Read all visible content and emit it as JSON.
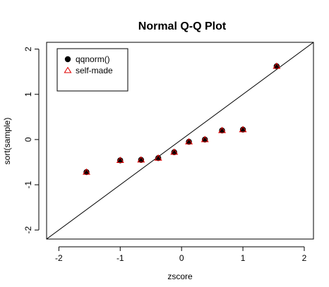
{
  "chart_data": {
    "type": "scatter",
    "title": "Normal Q-Q Plot",
    "xlabel": "zscore",
    "ylabel": "sort(sample)",
    "xlim": [
      -2.2,
      2.15
    ],
    "ylim": [
      -2.2,
      2.15
    ],
    "x_ticks": [
      -2,
      -1,
      0,
      1,
      2
    ],
    "y_ticks": [
      -2,
      -1,
      0,
      1,
      2
    ],
    "x_tick_labels": [
      "-2",
      "-1",
      "0",
      "1",
      "2"
    ],
    "y_tick_labels": [
      "-2",
      "-1",
      "0",
      "1",
      "2"
    ],
    "grid": false,
    "legend_position": "top-left",
    "reference_line": {
      "slope": 1,
      "intercept": 0,
      "color": "#000000"
    },
    "series": [
      {
        "name": "qqnorm()",
        "marker": "filled-circle",
        "color": "#000000",
        "x": [
          -1.55,
          -1.0,
          -0.66,
          -0.38,
          -0.12,
          0.12,
          0.38,
          0.66,
          1.0,
          1.55
        ],
        "y": [
          -0.72,
          -0.46,
          -0.45,
          -0.41,
          -0.28,
          -0.05,
          0.0,
          0.2,
          0.22,
          1.62
        ]
      },
      {
        "name": "self-made",
        "marker": "open-triangle",
        "color": "#e00000",
        "x": [
          -1.55,
          -1.0,
          -0.66,
          -0.38,
          -0.12,
          0.12,
          0.38,
          0.66,
          1.0,
          1.55
        ],
        "y": [
          -0.72,
          -0.46,
          -0.45,
          -0.41,
          -0.28,
          -0.05,
          0.0,
          0.2,
          0.22,
          1.62
        ]
      }
    ]
  }
}
